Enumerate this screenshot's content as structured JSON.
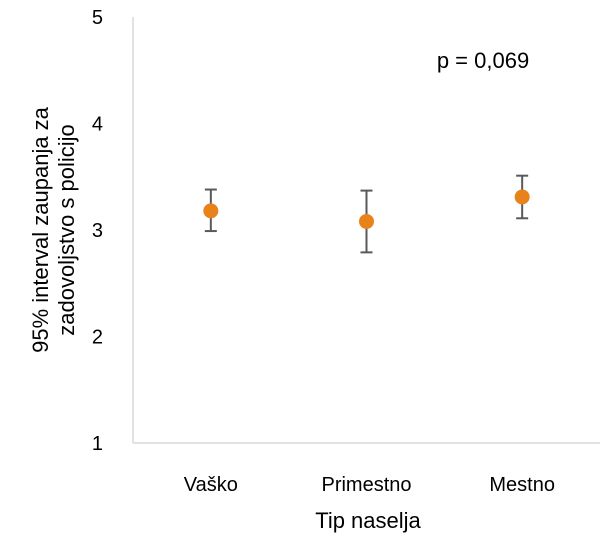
{
  "chart_data": {
    "type": "scatter",
    "title": "",
    "xlabel": "Tip naselja",
    "ylabel_lines": [
      "95% interval zaupanja za",
      "zadovoljstvo s policijo"
    ],
    "ylim": [
      1,
      5
    ],
    "yticks": [
      "1",
      "2",
      "3",
      "4",
      "5"
    ],
    "categories": [
      "Vaško",
      "Primestno",
      "Mestno"
    ],
    "series": [
      {
        "values": [
          3.18,
          3.08,
          3.31
        ],
        "ci_lower": [
          2.99,
          2.79,
          3.11
        ],
        "ci_upper": [
          3.38,
          3.37,
          3.51
        ]
      }
    ],
    "annotation": "p = 0,069",
    "grid": false,
    "legend": "none",
    "colors": {
      "marker": "#E8831C",
      "error_bar": "#595959",
      "axis": "#D9D9D9"
    }
  }
}
